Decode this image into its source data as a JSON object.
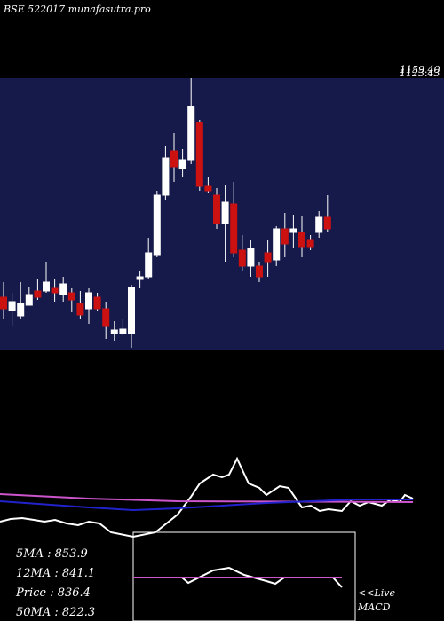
{
  "chart_data": [
    {
      "type": "candlestick",
      "title": "BSE 522017 munafasutra.pro",
      "price_labels": [
        "1159.40",
        "1123.43"
      ],
      "ylim": [
        548,
        1160
      ],
      "up_color": "#ffffff",
      "down_color": "#cc1111",
      "open": [
        666,
        636,
        624,
        648,
        680,
        680,
        686,
        672,
        676,
        652,
        640,
        666,
        640,
        584,
        584,
        584,
        706,
        712,
        760,
        896,
        996,
        956,
        976,
        1060,
        916,
        896,
        832,
        876,
        772,
        736,
        736,
        766,
        750,
        820,
        812,
        812,
        796,
        812,
        846
      ],
      "high": [
        700,
        676,
        700,
        688,
        706,
        746,
        706,
        712,
        686,
        680,
        686,
        676,
        656,
        612,
        616,
        694,
        726,
        800,
        906,
        1006,
        1036,
        1000,
        1160,
        1066,
        936,
        912,
        920,
        926,
        806,
        796,
        746,
        796,
        826,
        856,
        852,
        850,
        806,
        860,
        896
      ],
      "low": [
        616,
        600,
        616,
        648,
        660,
        676,
        656,
        656,
        632,
        616,
        606,
        636,
        572,
        568,
        580,
        552,
        686,
        706,
        756,
        886,
        926,
        936,
        966,
        906,
        900,
        820,
        746,
        756,
        726,
        712,
        700,
        712,
        736,
        756,
        776,
        756,
        772,
        800,
        812
      ],
      "close": [
        640,
        656,
        652,
        672,
        666,
        700,
        676,
        696,
        660,
        626,
        676,
        640,
        600,
        592,
        594,
        688,
        712,
        766,
        896,
        980,
        960,
        976,
        1096,
        916,
        906,
        832,
        880,
        766,
        736,
        776,
        712,
        746,
        820,
        786,
        820,
        780,
        780,
        846,
        820
      ]
    },
    {
      "type": "line",
      "xlim": [
        0,
        500
      ],
      "ylim": [
        0,
        100
      ],
      "series": [
        {
          "color": "#ffffff",
          "x": [
            0,
            12,
            25,
            38,
            50,
            62,
            75,
            88,
            100,
            112,
            125,
            150,
            175,
            200,
            215,
            225,
            240,
            250,
            258,
            267,
            280,
            292,
            300,
            315,
            325,
            340,
            350,
            360,
            370,
            385,
            395,
            405,
            415,
            430,
            440,
            450,
            456,
            465
          ],
          "values": [
            12,
            15,
            16,
            14,
            12,
            14,
            10,
            8,
            12,
            10,
            0,
            -5,
            0,
            20,
            40,
            55,
            65,
            62,
            65,
            83,
            55,
            50,
            42,
            52,
            50,
            28,
            30,
            24,
            26,
            24,
            35,
            30,
            34,
            30,
            37,
            34,
            42,
            38
          ]
        },
        {
          "color": "#cc55cc",
          "x": [
            0,
            100,
            200,
            465
          ],
          "values": [
            43,
            38,
            35,
            34
          ]
        },
        {
          "color": "#2222cc",
          "x": [
            0,
            100,
            150,
            200,
            300,
            400,
            465
          ],
          "values": [
            35,
            28,
            25,
            27,
            33,
            37,
            37
          ]
        }
      ],
      "stats": [
        "5MA : 853.9",
        "12MA : 841.1",
        "Price  : 836.4",
        "50MA : 822.3"
      ]
    },
    {
      "type": "macd",
      "xlim": [
        150,
        400
      ],
      "ylim": [
        0,
        100
      ],
      "label_live": "<<Live",
      "label": "MACD",
      "series": [
        {
          "color": "#ffffff",
          "x": [
            150,
            205,
            212,
            240,
            258,
            275,
            300,
            310,
            320,
            375,
            385
          ],
          "values": [
            49,
            49,
            43,
            57,
            60,
            52,
            45,
            42,
            49,
            49,
            38
          ]
        },
        {
          "color": "#cc55cc",
          "x": [
            150,
            385
          ],
          "values": [
            49,
            49
          ]
        }
      ]
    }
  ]
}
